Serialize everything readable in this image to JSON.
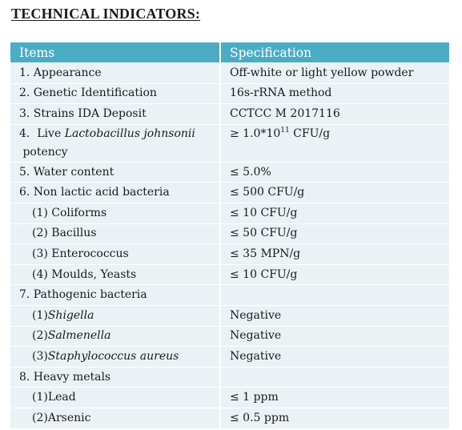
{
  "title": "TECHNICAL INDICATORS:",
  "table": {
    "headers": [
      "Items",
      "Specification"
    ],
    "rows": {
      "appearance": {
        "item": "1. Appearance",
        "spec": "Off-white or light yellow powder"
      },
      "genetic": {
        "item": "2. Genetic Identification",
        "spec": "16s-rRNA method"
      },
      "strains": {
        "item": "3. Strains IDA Deposit",
        "spec": "CCTCC M 2017116"
      },
      "potency": {
        "item_prefix": "4.  Live ",
        "item_italic": "Lactobacillus johnsonii",
        "item_suffix": " potency",
        "spec_prefix": "≥ 1.0*10",
        "spec_exp": "11",
        "spec_suffix": " CFU/g"
      },
      "water": {
        "item": "5. Water content",
        "spec": "≤ 5.0%"
      },
      "non_lactic": {
        "item": "6. Non lactic acid bacteria",
        "spec": "≤ 500 CFU/g"
      },
      "coliforms": {
        "item": "(1) Coliforms",
        "spec": "≤ 10 CFU/g"
      },
      "bacillus": {
        "item": "(2) Bacillus",
        "spec": "≤ 50 CFU/g"
      },
      "enterococcus": {
        "item": "(3) Enterococcus",
        "spec": "≤ 35 MPN/g"
      },
      "moulds": {
        "item": "(4) Moulds, Yeasts",
        "spec": "≤ 10 CFU/g"
      },
      "pathogenic": {
        "item": "7. Pathogenic bacteria",
        "spec": ""
      },
      "shigella": {
        "item_prefix": "(1)",
        "item_italic": "Shigella",
        "spec": "Negative"
      },
      "salmenella": {
        "item_prefix": "(2)",
        "item_italic": "Salmenella",
        "spec": "Negative"
      },
      "staph": {
        "item_prefix": "(3)",
        "item_italic": "Staphylococcus aureus",
        "spec": "Negative"
      },
      "heavy": {
        "item": "8. Heavy metals",
        "spec": ""
      },
      "lead": {
        "item": "(1)Lead",
        "spec": "≤ 1 ppm"
      },
      "arsenic": {
        "item": "(2)Arsenic",
        "spec": "≤ 0.5 ppm"
      }
    }
  }
}
